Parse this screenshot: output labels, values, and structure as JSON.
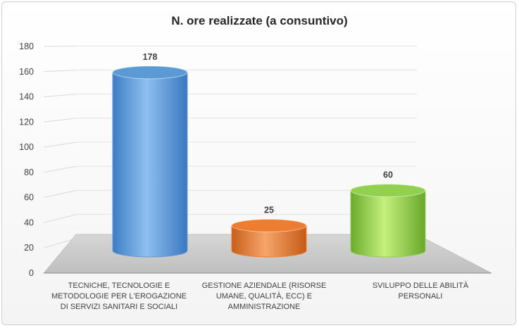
{
  "chart_data": {
    "type": "bar",
    "style": "3d-cylinder",
    "title": "N. ore realizzate (a consuntivo)",
    "xlabel": "",
    "ylabel": "",
    "categories": [
      "TECNICHE, TECNOLOGIE E METODOLOGIE PER L'EROGAZIONE DI SERVIZI SANITARI E SOCIALI",
      "GESTIONE AZIENDALE (RISORSE UMANE, QUALITÀ, ECC) E AMMINISTRAZIONE",
      "SVILUPPO DELLE ABILITÀ PERSONALI"
    ],
    "category_lines": [
      [
        "TECNICHE, TECNOLOGIE E",
        "METODOLOGIE PER L'EROGAZIONE",
        "DI SERVIZI SANITARI E SOCIALI"
      ],
      [
        "GESTIONE AZIENDALE (RISORSE",
        "UMANE, QUALITÀ, ECC) E",
        "AMMINISTRAZIONE"
      ],
      [
        "SVILUPPO DELLE ABILITÀ PERSONALI"
      ]
    ],
    "values": [
      178,
      25,
      60
    ],
    "data_labels": [
      "178",
      "25",
      "60"
    ],
    "colors": [
      "#5b9bd5",
      "#ed7d31",
      "#92d050"
    ],
    "ylim": [
      0,
      180
    ],
    "yticks": [
      "0",
      "20",
      "40",
      "60",
      "80",
      "100",
      "120",
      "140",
      "160",
      "180"
    ],
    "grid": true,
    "legend": "none"
  }
}
